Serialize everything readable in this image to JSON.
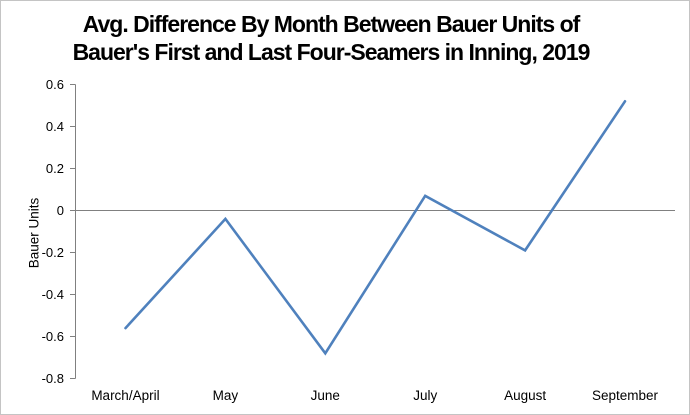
{
  "chart_data": {
    "type": "line",
    "title": "Avg. Difference By Month Between Bauer Units of Bauer's First and Last Four-Seamers in Inning, 2019",
    "title_lines": [
      "Avg. Difference By Month Between Bauer Units of",
      "Bauer's First and Last Four-Seamers in Inning, 2019"
    ],
    "categories": [
      "March/April",
      "May",
      "June",
      "July",
      "August",
      "September"
    ],
    "values": [
      -0.56,
      -0.04,
      -0.68,
      0.07,
      -0.19,
      0.52
    ],
    "xlabel": "",
    "ylabel": "Bauer Units",
    "ylim": [
      -0.8,
      0.6
    ],
    "ytick_step": 0.2,
    "ytick_labels": [
      "0.6",
      "0.4",
      "0.2",
      "0",
      "-0.2",
      "-0.4",
      "-0.6",
      "-0.8"
    ],
    "grid": "zero-line-only",
    "legend": "none",
    "colors": {
      "line": "#4F81BD",
      "axis": "#808080",
      "zero_line": "#808080",
      "border": "#C4C4C4",
      "text": "#000000"
    }
  }
}
